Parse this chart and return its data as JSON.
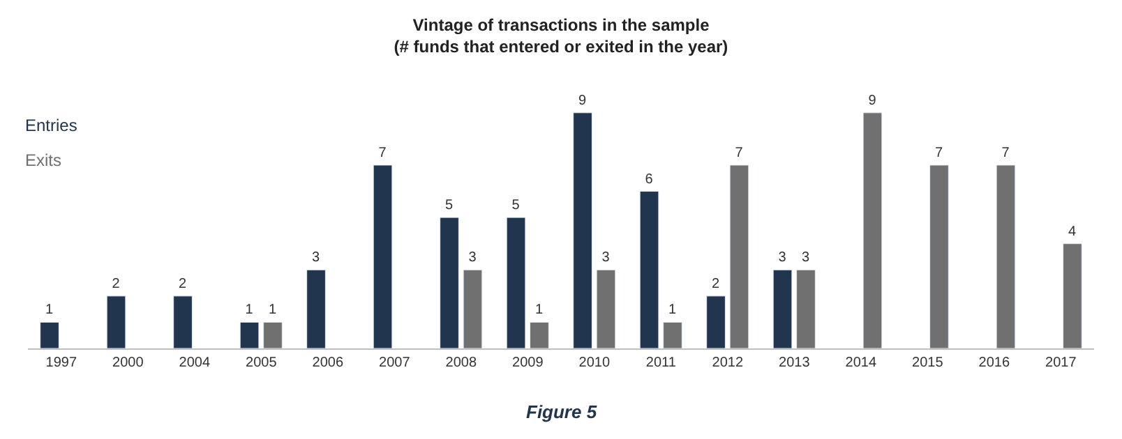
{
  "chart_data": {
    "type": "bar",
    "title": "Vintage of transactions in the sample",
    "subtitle": "(# funds that entered or exited in the year)",
    "categories": [
      "1997",
      "2000",
      "2004",
      "2005",
      "2006",
      "2007",
      "2008",
      "2009",
      "2010",
      "2011",
      "2012",
      "2013",
      "2014",
      "2015",
      "2016",
      "2017"
    ],
    "series": [
      {
        "name": "Entries",
        "color": "#22354f",
        "values": [
          1,
          2,
          2,
          1,
          3,
          7,
          5,
          5,
          9,
          6,
          2,
          3,
          null,
          null,
          null,
          null
        ]
      },
      {
        "name": "Exits",
        "color": "#707070",
        "values": [
          null,
          null,
          null,
          1,
          null,
          null,
          3,
          1,
          3,
          1,
          7,
          3,
          9,
          7,
          7,
          4
        ]
      }
    ],
    "data_labels": true,
    "legend": "top left",
    "annotations": [
      "Figure 5"
    ]
  }
}
